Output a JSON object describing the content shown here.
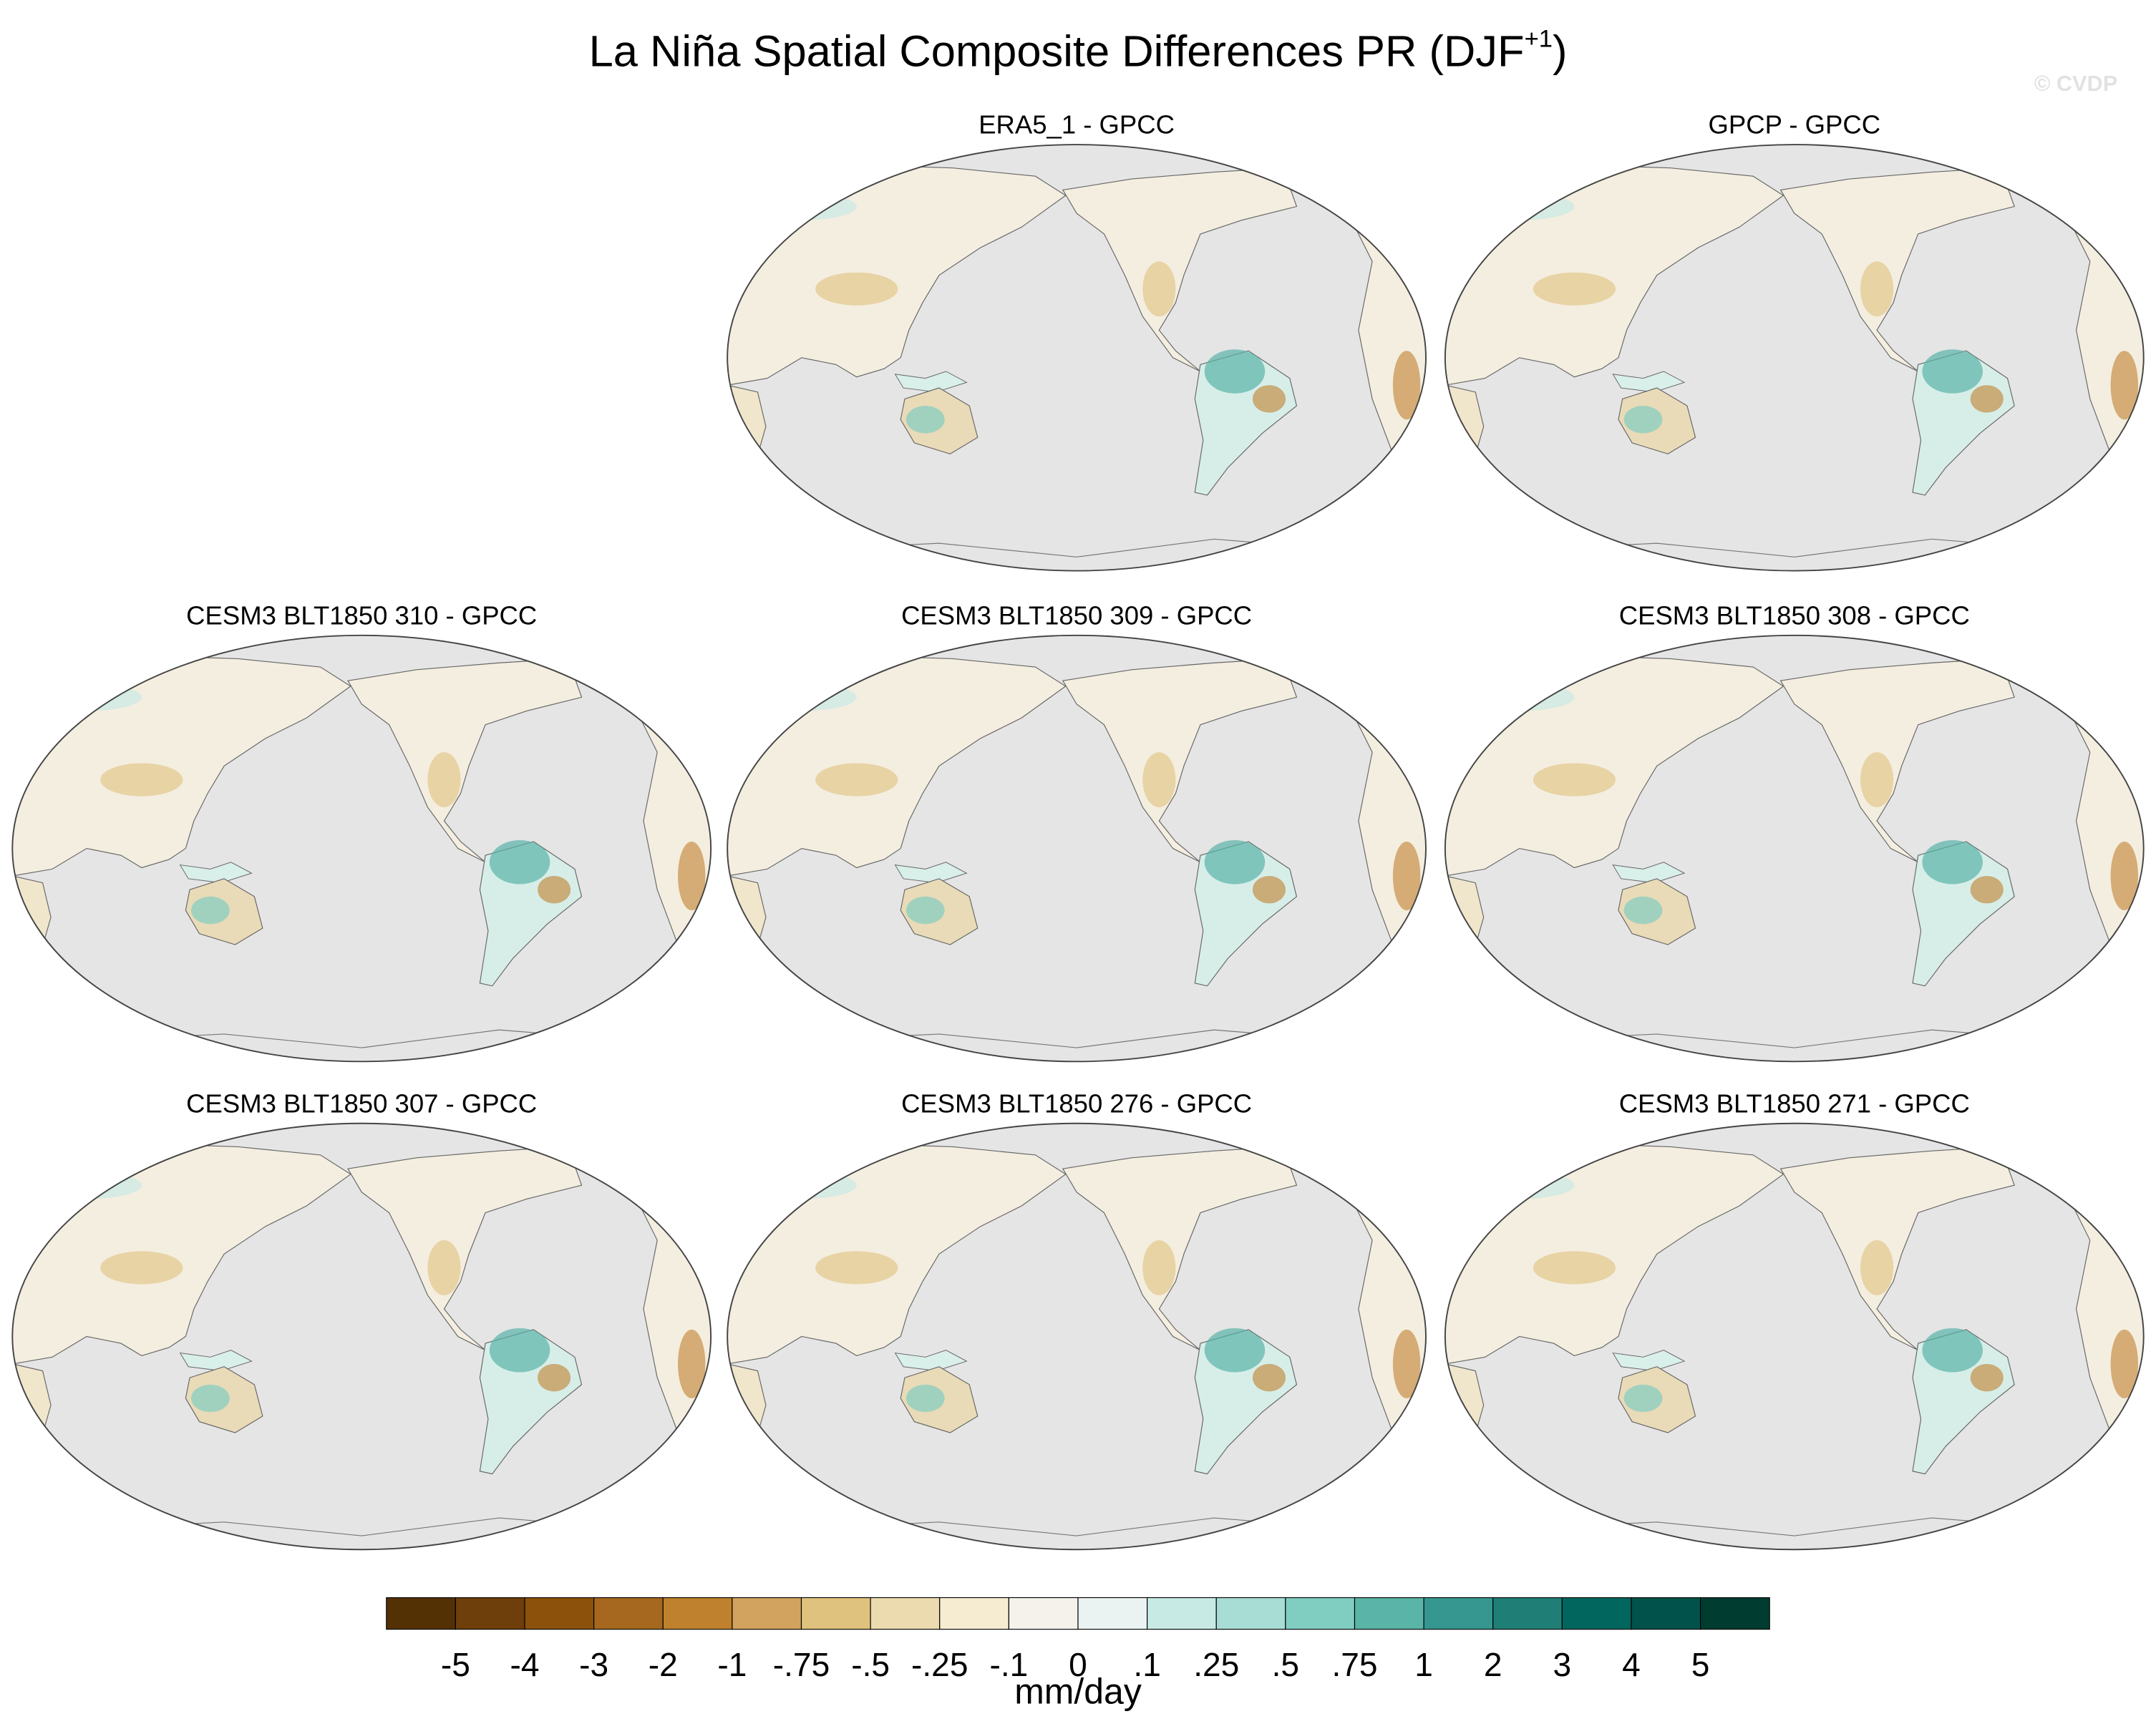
{
  "header": {
    "title": "La Niña Spatial Composite Differences PR (DJF",
    "title_superscript": "+1",
    "title_close": ")",
    "watermark": "© CVDP"
  },
  "panels": [
    {
      "title": "ERA5_1 - GPCC",
      "row": 0,
      "col": 1
    },
    {
      "title": "GPCP - GPCC",
      "row": 0,
      "col": 2
    },
    {
      "title": "CESM3 BLT1850 310 - GPCC",
      "row": 1,
      "col": 0
    },
    {
      "title": "CESM3 BLT1850 309 - GPCC",
      "row": 1,
      "col": 1
    },
    {
      "title": "CESM3 BLT1850 308 - GPCC",
      "row": 1,
      "col": 2
    },
    {
      "title": "CESM3 BLT1850 307 - GPCC",
      "row": 2,
      "col": 0
    },
    {
      "title": "CESM3 BLT1850 276 - GPCC",
      "row": 2,
      "col": 1
    },
    {
      "title": "CESM3 BLT1850 271 - GPCC",
      "row": 2,
      "col": 2
    }
  ],
  "colorbar": {
    "colors": [
      "#543005",
      "#6e3f0a",
      "#8c510a",
      "#a6681e",
      "#bf812d",
      "#d1a35f",
      "#dfc27d",
      "#eddbb0",
      "#f6ecd2",
      "#f5f2ec",
      "#eaf3f1",
      "#c7eae5",
      "#a8ddd5",
      "#80cdc1",
      "#5ab4a8",
      "#35978f",
      "#1f7f77",
      "#01665e",
      "#00524a",
      "#003c30"
    ],
    "labels": [
      "-5",
      "-4",
      "-3",
      "-2",
      "-1",
      "-.75",
      "-.5",
      "-.25",
      "-.1",
      "0",
      ".1",
      ".25",
      ".5",
      ".75",
      "1",
      "2",
      "3",
      "4",
      "5"
    ],
    "unit": "mm/day"
  }
}
